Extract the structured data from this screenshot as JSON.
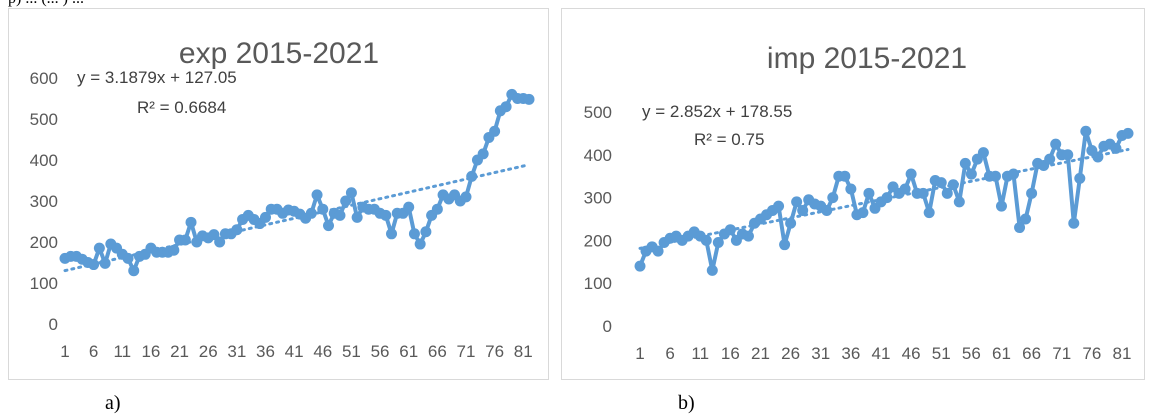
{
  "chart_data": [
    {
      "type": "line",
      "title": "exp 2015-2021",
      "xlabel": "",
      "ylabel": "",
      "ylim": [
        0,
        600
      ],
      "yticks": [
        "0",
        "100",
        "200",
        "300",
        "400",
        "500",
        "600"
      ],
      "xtick_labels": [
        "1",
        "6",
        "11",
        "16",
        "21",
        "26",
        "31",
        "36",
        "41",
        "46",
        "51",
        "56",
        "61",
        "66",
        "71",
        "76",
        "81"
      ],
      "grid": false,
      "legend": "none",
      "marker": "circle",
      "color": "#5b9bd5",
      "series": [
        {
          "x": [
            1,
            2,
            3,
            4,
            5,
            6,
            7,
            8,
            9,
            10,
            11,
            12,
            13,
            14,
            15,
            16,
            17,
            18,
            19,
            20,
            21,
            22,
            23,
            24,
            25,
            26,
            27,
            28,
            29,
            30,
            31,
            32,
            33,
            34,
            35,
            36,
            37,
            38,
            39,
            40,
            41,
            42,
            43,
            44,
            45,
            46,
            47,
            48,
            49,
            50,
            51,
            52,
            53,
            54,
            55,
            56,
            57,
            58,
            59,
            60,
            61,
            62,
            63,
            64,
            65,
            66,
            67,
            68,
            69,
            70,
            71,
            72,
            73,
            74,
            75,
            76,
            77,
            78,
            79,
            80,
            81,
            82
          ],
          "values": [
            160,
            165,
            165,
            158,
            150,
            145,
            185,
            148,
            195,
            185,
            170,
            160,
            130,
            165,
            170,
            185,
            175,
            175,
            175,
            180,
            205,
            205,
            248,
            200,
            215,
            210,
            218,
            200,
            220,
            220,
            230,
            255,
            265,
            255,
            245,
            260,
            280,
            280,
            270,
            278,
            275,
            268,
            258,
            270,
            315,
            280,
            240,
            270,
            265,
            300,
            320,
            260,
            285,
            280,
            280,
            270,
            265,
            220,
            270,
            270,
            285,
            220,
            195,
            225,
            265,
            280,
            315,
            305,
            315,
            300,
            310,
            360,
            400,
            415,
            455,
            470,
            520,
            530,
            560,
            550,
            550,
            548
          ]
        }
      ],
      "trendline": {
        "type": "linear",
        "equation": "y = 3.1879x + 127.05",
        "r2": "R² = 0.6684",
        "slope": 3.1879,
        "intercept": 127.05
      }
    },
    {
      "type": "line",
      "title": "imp 2015-2021",
      "xlabel": "",
      "ylabel": "",
      "ylim": [
        0,
        500
      ],
      "yticks": [
        "0",
        "100",
        "200",
        "300",
        "400",
        "500"
      ],
      "xtick_labels": [
        "1",
        "6",
        "11",
        "16",
        "21",
        "26",
        "31",
        "36",
        "41",
        "46",
        "51",
        "56",
        "61",
        "66",
        "71",
        "76",
        "81"
      ],
      "grid": false,
      "legend": "none",
      "marker": "circle",
      "color": "#5b9bd5",
      "series": [
        {
          "x": [
            1,
            2,
            3,
            4,
            5,
            6,
            7,
            8,
            9,
            10,
            11,
            12,
            13,
            14,
            15,
            16,
            17,
            18,
            19,
            20,
            21,
            22,
            23,
            24,
            25,
            26,
            27,
            28,
            29,
            30,
            31,
            32,
            33,
            34,
            35,
            36,
            37,
            38,
            39,
            40,
            41,
            42,
            43,
            44,
            45,
            46,
            47,
            48,
            49,
            50,
            51,
            52,
            53,
            54,
            55,
            56,
            57,
            58,
            59,
            60,
            61,
            62,
            63,
            64,
            65,
            66,
            67,
            68,
            69,
            70,
            71,
            72,
            73,
            74,
            75,
            76,
            77,
            78,
            79,
            80,
            81,
            82
          ],
          "values": [
            140,
            175,
            185,
            175,
            195,
            205,
            210,
            200,
            210,
            220,
            210,
            200,
            130,
            195,
            215,
            225,
            200,
            215,
            210,
            240,
            250,
            260,
            270,
            280,
            190,
            240,
            290,
            270,
            295,
            285,
            280,
            270,
            300,
            350,
            350,
            320,
            260,
            265,
            310,
            275,
            290,
            300,
            325,
            310,
            320,
            355,
            310,
            310,
            265,
            340,
            335,
            310,
            330,
            290,
            380,
            355,
            390,
            405,
            350,
            350,
            280,
            350,
            355,
            230,
            250,
            310,
            380,
            375,
            390,
            425,
            400,
            400,
            240,
            345,
            455,
            410,
            395,
            420,
            425,
            415,
            445,
            450
          ]
        }
      ],
      "trendline": {
        "type": "linear",
        "equation": "y = 2.852x + 178.55",
        "r2": "R² = 0.75",
        "slope": 2.852,
        "intercept": 178.55
      }
    }
  ],
  "captions": {
    "a": "a)",
    "b": "b)"
  },
  "top_fragment": "p) ... (... ) ..."
}
